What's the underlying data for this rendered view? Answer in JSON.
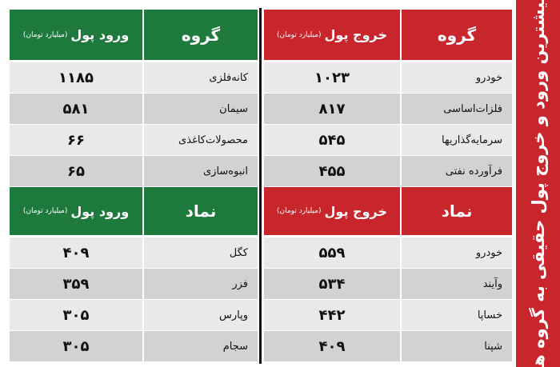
{
  "title": "بیشترین ورود و خروج پول حقیقی به گروه ها",
  "tables": [
    {
      "side": "exit",
      "header": {
        "name": "گروه",
        "value": "خروج پول",
        "unit": "(میلیارد تومان)"
      },
      "rows": [
        [
          "خودرو",
          "۱۰۲۳"
        ],
        [
          "فلزات‌اساسی",
          "۸۱۷"
        ],
        [
          "سرمایه‌گذاریها",
          "۵۴۵"
        ],
        [
          "فرآورده نفتی",
          "۴۵۵"
        ]
      ]
    },
    {
      "side": "entry",
      "header": {
        "name": "گروه",
        "value": "ورود پول",
        "unit": "(میلیارد تومان)"
      },
      "rows": [
        [
          "کانه‌فلزی",
          "۱۱۸۵"
        ],
        [
          "سیمان",
          "۵۸۱"
        ],
        [
          "محصولات‌کاغذی",
          "۶۶"
        ],
        [
          "انبوه‌سازی",
          "۶۵"
        ]
      ]
    },
    {
      "side": "exit",
      "header": {
        "name": "نماد",
        "value": "خروج پول",
        "unit": "(میلیارد تومان)"
      },
      "rows": [
        [
          "خودرو",
          "۵۵۹"
        ],
        [
          "وآیند",
          "۵۳۴"
        ],
        [
          "خساپا",
          "۴۴۲"
        ],
        [
          "شپنا",
          "۴۰۹"
        ]
      ]
    },
    {
      "side": "entry",
      "header": {
        "name": "نماد",
        "value": "ورود پول",
        "unit": "(میلیارد تومان)"
      },
      "rows": [
        [
          "کگل",
          "۴۰۹"
        ],
        [
          "فزر",
          "۳۵۹"
        ],
        [
          "وپارس",
          "۳۰۵"
        ],
        [
          "سجام",
          "۳۰۵"
        ]
      ]
    }
  ]
}
